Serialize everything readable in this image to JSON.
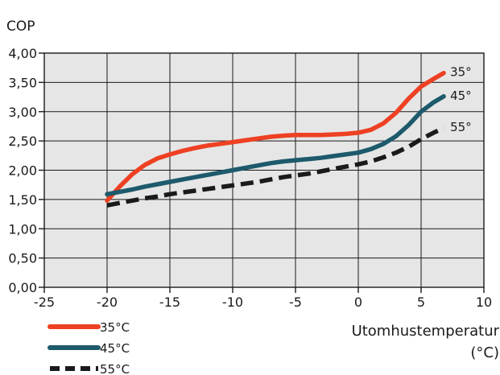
{
  "chart_data": {
    "type": "line",
    "ylabel": "COP",
    "xlabel_line1": "Utomhustemperatur",
    "xlabel_line2": "(°C)",
    "xlim": [
      -25,
      10
    ],
    "ylim": [
      0,
      4
    ],
    "x_ticks": [
      -25,
      -20,
      -15,
      -10,
      -5,
      0,
      5,
      10
    ],
    "x_tick_labels": [
      "-25",
      "-20",
      "-15",
      "-10",
      "-5",
      "0",
      "5",
      "10"
    ],
    "y_ticks": [
      0,
      0.5,
      1,
      1.5,
      2,
      2.5,
      3,
      3.5,
      4
    ],
    "y_tick_labels": [
      "0,00",
      "0,50",
      "1,00",
      "1,50",
      "2,00",
      "2,50",
      "3,00",
      "3,50",
      "4,00"
    ],
    "grid": true,
    "plot_background": "#e6e6e6",
    "series": [
      {
        "name": "35°C",
        "end_label": "35°",
        "color": "#ee4023",
        "dash": false,
        "points": [
          [
            -20,
            1.48
          ],
          [
            -19,
            1.72
          ],
          [
            -18,
            1.93
          ],
          [
            -17,
            2.09
          ],
          [
            -16,
            2.2
          ],
          [
            -15,
            2.27
          ],
          [
            -14,
            2.33
          ],
          [
            -13,
            2.38
          ],
          [
            -12,
            2.42
          ],
          [
            -11,
            2.45
          ],
          [
            -10,
            2.48
          ],
          [
            -9,
            2.51
          ],
          [
            -8,
            2.54
          ],
          [
            -7,
            2.57
          ],
          [
            -6,
            2.59
          ],
          [
            -5,
            2.6
          ],
          [
            -4,
            2.6
          ],
          [
            -3,
            2.6
          ],
          [
            -2,
            2.61
          ],
          [
            -1,
            2.62
          ],
          [
            0,
            2.64
          ],
          [
            1,
            2.69
          ],
          [
            2,
            2.8
          ],
          [
            3,
            2.98
          ],
          [
            4,
            3.22
          ],
          [
            5,
            3.43
          ],
          [
            6,
            3.56
          ],
          [
            6.8,
            3.66
          ]
        ]
      },
      {
        "name": "45°C",
        "end_label": "45°",
        "color": "#1d5a6b",
        "dash": false,
        "points": [
          [
            -20,
            1.59
          ],
          [
            -19,
            1.63
          ],
          [
            -18,
            1.67
          ],
          [
            -17,
            1.72
          ],
          [
            -16,
            1.76
          ],
          [
            -15,
            1.8
          ],
          [
            -14,
            1.84
          ],
          [
            -13,
            1.88
          ],
          [
            -12,
            1.92
          ],
          [
            -11,
            1.96
          ],
          [
            -10,
            2.0
          ],
          [
            -9,
            2.04
          ],
          [
            -8,
            2.08
          ],
          [
            -7,
            2.12
          ],
          [
            -6,
            2.15
          ],
          [
            -5,
            2.17
          ],
          [
            -4,
            2.19
          ],
          [
            -3,
            2.21
          ],
          [
            -2,
            2.24
          ],
          [
            -1,
            2.27
          ],
          [
            0,
            2.3
          ],
          [
            1,
            2.36
          ],
          [
            2,
            2.45
          ],
          [
            3,
            2.58
          ],
          [
            4,
            2.77
          ],
          [
            5,
            3.0
          ],
          [
            6,
            3.16
          ],
          [
            6.8,
            3.26
          ]
        ]
      },
      {
        "name": "55°C",
        "end_label": "55°",
        "color": "#1a1a1a",
        "dash": true,
        "points": [
          [
            -20,
            1.4
          ],
          [
            -19,
            1.44
          ],
          [
            -18,
            1.48
          ],
          [
            -17,
            1.52
          ],
          [
            -16,
            1.55
          ],
          [
            -15,
            1.59
          ],
          [
            -14,
            1.62
          ],
          [
            -13,
            1.65
          ],
          [
            -12,
            1.68
          ],
          [
            -11,
            1.71
          ],
          [
            -10,
            1.74
          ],
          [
            -9,
            1.77
          ],
          [
            -8,
            1.8
          ],
          [
            -7,
            1.84
          ],
          [
            -6,
            1.88
          ],
          [
            -5,
            1.91
          ],
          [
            -4,
            1.94
          ],
          [
            -3,
            1.98
          ],
          [
            -2,
            2.02
          ],
          [
            -1,
            2.06
          ],
          [
            0,
            2.1
          ],
          [
            1,
            2.15
          ],
          [
            2,
            2.22
          ],
          [
            3,
            2.3
          ],
          [
            4,
            2.4
          ],
          [
            5,
            2.53
          ],
          [
            6,
            2.64
          ],
          [
            6.8,
            2.72
          ]
        ]
      }
    ]
  }
}
